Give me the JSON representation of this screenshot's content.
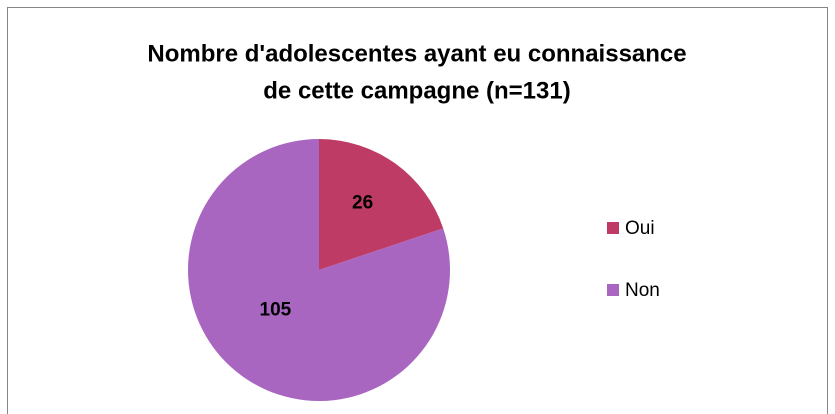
{
  "chart_data": {
    "type": "pie",
    "title": [
      "Nombre d'adolescentes ayant eu connaissance",
      "de cette campagne (n=131)"
    ],
    "categories": [
      "Oui",
      "Non"
    ],
    "values": [
      26,
      105
    ],
    "colors": [
      "#be3b65",
      "#a966c0"
    ],
    "legend": "right"
  }
}
